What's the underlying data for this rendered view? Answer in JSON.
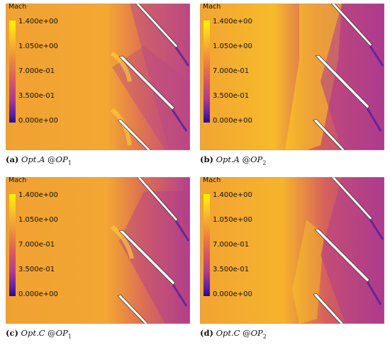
{
  "legend": {
    "title": "Mach",
    "ticks": [
      "1.400e+00",
      "1.050e+00",
      "7.000e-01",
      "3.500e-01",
      "0.000e+00"
    ]
  },
  "panels": [
    {
      "letter": "(a)",
      "opt": "Opt.A",
      "at": "@",
      "op": "OP",
      "sub": "1"
    },
    {
      "letter": "(b)",
      "opt": "Opt.A",
      "at": "@",
      "op": "OP",
      "sub": "2"
    },
    {
      "letter": "(c)",
      "opt": "Opt.C",
      "at": "@",
      "op": "OP",
      "sub": "1"
    },
    {
      "letter": "(d)",
      "opt": "Opt.C",
      "at": "@",
      "op": "OP",
      "sub": "2"
    }
  ],
  "colors": {
    "bg_orange": "#f0a035",
    "high_yellow": "#ffd21e",
    "low_magenta": "#b03a8e",
    "low_purple": "#5a1fa8",
    "blade": "#ffffff"
  }
}
